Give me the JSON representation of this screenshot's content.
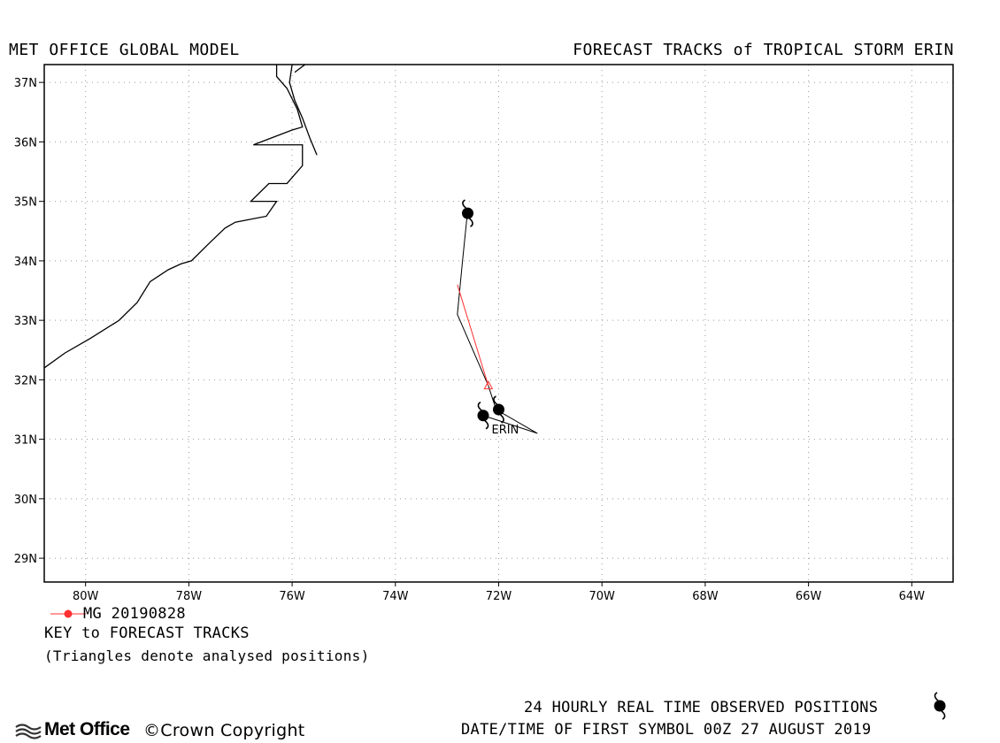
{
  "header": {
    "left_title": "MET OFFICE GLOBAL MODEL",
    "right_title": "FORECAST TRACKS of TROPICAL STORM ERIN"
  },
  "map": {
    "lat_range": [
      28.6,
      37.3
    ],
    "lon_range": [
      -80.8,
      -63.2
    ],
    "lat_ticks": [
      {
        "value": 29,
        "label": "29N"
      },
      {
        "value": 30,
        "label": "30N"
      },
      {
        "value": 31,
        "label": "31N"
      },
      {
        "value": 32,
        "label": "32N"
      },
      {
        "value": 33,
        "label": "33N"
      },
      {
        "value": 34,
        "label": "34N"
      },
      {
        "value": 35,
        "label": "35N"
      },
      {
        "value": 36,
        "label": "36N"
      },
      {
        "value": 37,
        "label": "37N"
      }
    ],
    "lon_ticks": [
      {
        "value": -80,
        "label": "80W"
      },
      {
        "value": -78,
        "label": "78W"
      },
      {
        "value": -76,
        "label": "76W"
      },
      {
        "value": -74,
        "label": "74W"
      },
      {
        "value": -72,
        "label": "72W"
      },
      {
        "value": -70,
        "label": "70W"
      },
      {
        "value": -68,
        "label": "68W"
      },
      {
        "value": -66,
        "label": "66W"
      },
      {
        "value": -64,
        "label": "64W"
      }
    ],
    "grid": "dotted",
    "coastline": [
      [
        [
          -80.8,
          32.2
        ],
        [
          -80.4,
          32.45
        ],
        [
          -79.9,
          32.7
        ],
        [
          -79.35,
          33.0
        ],
        [
          -79.0,
          33.3
        ],
        [
          -78.75,
          33.65
        ],
        [
          -78.4,
          33.85
        ],
        [
          -78.15,
          33.95
        ],
        [
          -77.95,
          34.0
        ],
        [
          -77.6,
          34.3
        ],
        [
          -77.3,
          34.55
        ],
        [
          -77.1,
          34.65
        ],
        [
          -76.5,
          34.75
        ],
        [
          -76.3,
          35.0
        ],
        [
          -76.8,
          35.0
        ],
        [
          -76.45,
          35.3
        ],
        [
          -76.1,
          35.3
        ],
        [
          -75.8,
          35.6
        ],
        [
          -75.8,
          35.95
        ],
        [
          -76.2,
          35.95
        ],
        [
          -76.75,
          35.95
        ],
        [
          -76.0,
          36.2
        ],
        [
          -75.8,
          36.25
        ],
        [
          -75.9,
          36.55
        ],
        [
          -76.1,
          36.9
        ],
        [
          -76.3,
          37.1
        ],
        [
          -76.3,
          37.3
        ]
      ],
      [
        [
          -75.52,
          35.78
        ],
        [
          -75.65,
          36.05
        ],
        [
          -75.8,
          36.4
        ],
        [
          -75.95,
          36.7
        ],
        [
          -76.05,
          37.0
        ],
        [
          -76.0,
          37.3
        ]
      ],
      [
        [
          -75.75,
          37.3
        ],
        [
          -75.95,
          37.17
        ]
      ]
    ],
    "observed_track": [
      [
        -72.6,
        34.85
      ],
      [
        -72.7,
        34.0
      ],
      [
        -72.8,
        33.1
      ],
      [
        -72.2,
        31.9
      ],
      [
        -72.05,
        31.5
      ],
      [
        -71.25,
        31.1
      ],
      [
        -72.3,
        31.4
      ]
    ],
    "observed_symbols": [
      {
        "lon": -72.6,
        "lat": 34.8,
        "name": ""
      },
      {
        "lon": -72.0,
        "lat": 31.5,
        "name": "ERIN"
      },
      {
        "lon": -72.3,
        "lat": 31.4,
        "name": ""
      }
    ],
    "forecast_tracks": [
      {
        "name": "MG 20190828",
        "color": "#ff3030",
        "points": [
          [
            -72.8,
            33.6
          ],
          [
            -72.2,
            31.9
          ]
        ],
        "analysed_positions": [
          [
            -72.2,
            31.9
          ]
        ]
      }
    ]
  },
  "key": {
    "run_label": "MG 20190828",
    "title": "KEY to FORECAST TRACKS",
    "note": "(Triangles denote analysed positions)"
  },
  "footer": {
    "logo_text": "Met Office",
    "copyright": "©Crown Copyright",
    "observed_text": "24 HOURLY REAL TIME OBSERVED POSITIONS",
    "date_text": "DATE/TIME OF FIRST SYMBOL 00Z 27 AUGUST 2019"
  },
  "colors": {
    "forecast": "#ff3030",
    "track": "#000000",
    "grid": "#999999"
  }
}
